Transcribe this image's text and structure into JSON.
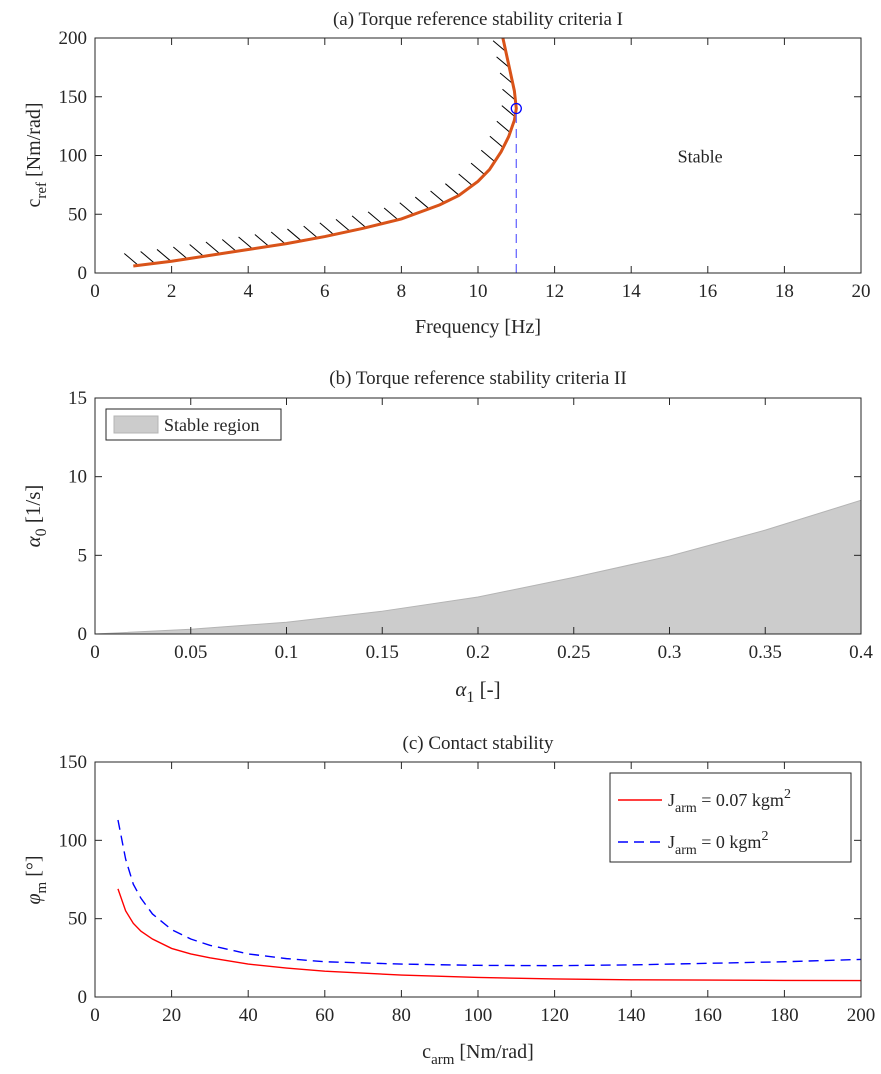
{
  "chart_data": [
    {
      "panel": "a",
      "type": "line",
      "title": "(a) Torque reference stability criteria I",
      "xlabel": "Frequency [Hz]",
      "ylabel": {
        "main": "c",
        "sub": "ref",
        "unit": " [Nm/rad]"
      },
      "xlim": [
        0,
        20
      ],
      "ylim": [
        0,
        200
      ],
      "xticks": [
        "0",
        "2",
        "4",
        "6",
        "8",
        "10",
        "12",
        "14",
        "16",
        "18",
        "20"
      ],
      "yticks": [
        "0",
        "50",
        "100",
        "150",
        "200"
      ],
      "grid": false,
      "series": [
        {
          "color": "#D95319",
          "x": [
            1.0,
            1.5,
            2.0,
            3.0,
            4.0,
            5.0,
            6.0,
            7.0,
            8.0,
            9.0,
            9.5,
            10.0,
            10.3,
            10.6,
            10.8,
            10.95,
            11.0,
            10.95,
            10.85,
            10.75,
            10.65
          ],
          "y": [
            6,
            8,
            10,
            15,
            20,
            25,
            31,
            38,
            46,
            58,
            66,
            78,
            88,
            103,
            116,
            130,
            140,
            155,
            170,
            185,
            200
          ]
        }
      ],
      "marker": {
        "x": 11.0,
        "y": 140,
        "color": "#0000FF"
      },
      "vline": {
        "x": 11.0,
        "y": [
          0,
          140
        ],
        "color": "#6B6BFF"
      },
      "hatch_side": "left of curve",
      "annotations": [
        {
          "text": "Stable",
          "x": 15.8,
          "y": 100
        }
      ]
    },
    {
      "panel": "b",
      "type": "area",
      "title": "(b) Torque reference stability criteria II",
      "xlabel": {
        "main": "α",
        "sub": "1",
        "unit": " [-]"
      },
      "ylabel": {
        "main": "α",
        "sub": "0",
        "unit": " [1/s]"
      },
      "xlim": [
        0,
        0.4
      ],
      "ylim": [
        0,
        15
      ],
      "xticks": [
        "0",
        "0.05",
        "0.1",
        "0.15",
        "0.2",
        "0.25",
        "0.3",
        "0.35",
        "0.4"
      ],
      "yticks": [
        "0",
        "5",
        "10",
        "15"
      ],
      "grid": false,
      "series": [
        {
          "name": "Stable region",
          "color": "#CCCCCC",
          "x": [
            0,
            0.05,
            0.1,
            0.15,
            0.2,
            0.25,
            0.3,
            0.35,
            0.4
          ],
          "y": [
            0,
            0.3,
            0.75,
            1.45,
            2.35,
            3.6,
            4.95,
            6.6,
            8.5
          ]
        }
      ],
      "legend": "top-left"
    },
    {
      "panel": "c",
      "type": "line",
      "title": "(c) Contact stability",
      "xlabel": {
        "main": "c",
        "sub": "arm",
        "unit": " [Nm/rad]"
      },
      "ylabel": {
        "main": "φ",
        "sub": "m",
        "unit": " [°]"
      },
      "xlim": [
        0,
        200
      ],
      "ylim": [
        0,
        150
      ],
      "xticks": [
        "0",
        "20",
        "40",
        "60",
        "80",
        "100",
        "120",
        "140",
        "160",
        "180",
        "200"
      ],
      "yticks": [
        "0",
        "50",
        "100",
        "150"
      ],
      "grid": false,
      "series": [
        {
          "name": {
            "main": "J",
            "sub": "arm",
            "rest": " = 0.07 kgm",
            "sup": "2"
          },
          "color": "#FF0000",
          "dash": false,
          "x": [
            6,
            8,
            10,
            12,
            15,
            20,
            25,
            30,
            40,
            50,
            60,
            80,
            100,
            120,
            140,
            160,
            180,
            200
          ],
          "y": [
            69,
            55,
            47,
            42,
            37,
            31,
            27.5,
            25,
            21,
            18.5,
            16.5,
            14,
            12.5,
            11.5,
            11,
            10.8,
            10.6,
            10.5
          ]
        },
        {
          "name": {
            "main": "J",
            "sub": "arm",
            "rest": " = 0 kgm",
            "sup": "2"
          },
          "color": "#0000FF",
          "dash": true,
          "x": [
            6,
            8,
            10,
            12,
            15,
            20,
            25,
            30,
            40,
            50,
            60,
            80,
            100,
            120,
            140,
            160,
            180,
            200
          ],
          "y": [
            113,
            88,
            72,
            63,
            53,
            43,
            37,
            33,
            27.5,
            24.5,
            22.5,
            21,
            20.2,
            20,
            20.5,
            21.5,
            22.5,
            24
          ]
        }
      ],
      "legend": "top-right"
    }
  ]
}
